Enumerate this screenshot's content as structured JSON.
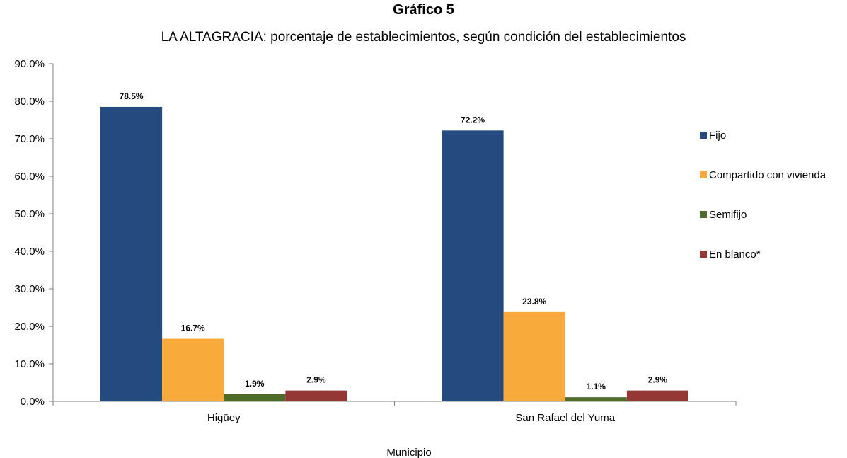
{
  "chart_data": {
    "type": "bar",
    "title": "Gráfico 5",
    "subtitle": "LA ALTAGRACIA: porcentaje de establecimientos, según condición del establecimientos",
    "xlabel": "Municipio",
    "ylabel": "",
    "categories": [
      "Higüey",
      "San Rafael del Yuma"
    ],
    "series": [
      {
        "name": "Fijo",
        "values": [
          78.5,
          72.2
        ],
        "color": "#244a7f"
      },
      {
        "name": "Compartido con vivienda",
        "values": [
          16.7,
          23.8
        ],
        "color": "#f8ab3a"
      },
      {
        "name": "Semifijo",
        "values": [
          1.9,
          1.1
        ],
        "color": "#4e6b2c"
      },
      {
        "name": "En blanco*",
        "values": [
          2.9,
          2.9
        ],
        "color": "#953735"
      }
    ],
    "ylim": [
      0,
      90
    ],
    "yticks": [
      0,
      10,
      20,
      30,
      40,
      50,
      60,
      70,
      80,
      90
    ],
    "ytick_labels": [
      "0.0%",
      "10.0%",
      "20.0%",
      "30.0%",
      "40.0%",
      "50.0%",
      "60.0%",
      "70.0%",
      "80.0%",
      "90.0%"
    ],
    "data_labels": [
      [
        "78.5%",
        "72.2%"
      ],
      [
        "16.7%",
        "23.8%"
      ],
      [
        "1.9%",
        "1.1%"
      ],
      [
        "2.9%",
        "2.9%"
      ]
    ],
    "grid": false,
    "legend_position": "right"
  }
}
